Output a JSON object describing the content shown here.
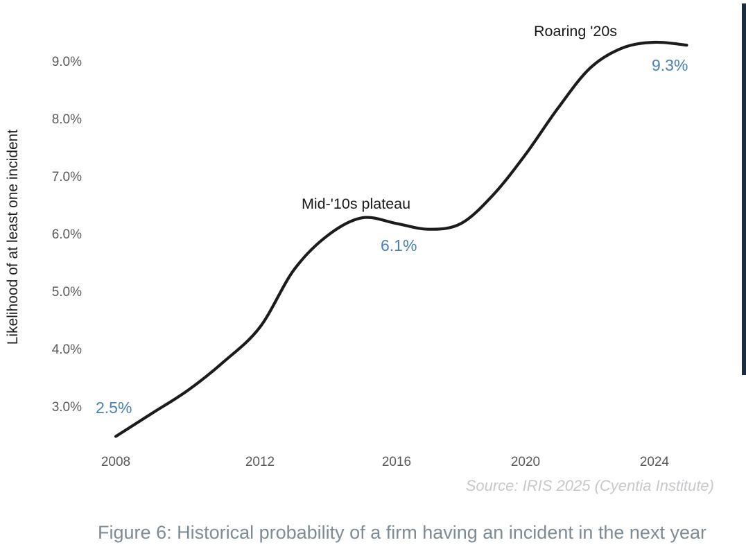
{
  "figure": {
    "caption": "Figure 6: Historical probability of a firm having an incident in the next year",
    "source": "Source: IRIS 2025 (Cyentia Institute)"
  },
  "axes": {
    "y_title": "Likelihood of at least one incident",
    "y_tick_labels": [
      "9.0%",
      "8.0%",
      "7.0%",
      "6.0%",
      "5.0%",
      "4.0%",
      "3.0%"
    ],
    "x_tick_labels": [
      "2008",
      "2012",
      "2016",
      "2020",
      "2024"
    ]
  },
  "annotations": {
    "plateau": "Mid-'10s plateau",
    "roaring": "Roaring '20s"
  },
  "value_labels": {
    "start": "2.5%",
    "plateau": "6.1%",
    "peak": "9.3%"
  },
  "colors": {
    "curve": "#1b1b1b",
    "value_label_blue": "#4a80b2",
    "tick_gray": "#58595b",
    "source_gray": "#c6c8cb",
    "caption_gray": "#7d8b95",
    "right_bar_navy": "#1a2c3e"
  },
  "chart_data": {
    "type": "line",
    "title": "",
    "xlabel": "",
    "ylabel": "Likelihood of at least one incident",
    "x": [
      2008,
      2009,
      2010,
      2011,
      2012,
      2013,
      2014,
      2015,
      2016,
      2017,
      2018,
      2019,
      2020,
      2021,
      2022,
      2023,
      2024,
      2025
    ],
    "values": [
      2.5,
      2.9,
      3.3,
      3.8,
      4.4,
      5.4,
      6.0,
      6.3,
      6.2,
      6.1,
      6.2,
      6.7,
      7.4,
      8.2,
      8.9,
      9.25,
      9.35,
      9.3
    ],
    "y_ticks": [
      3.0,
      4.0,
      5.0,
      6.0,
      7.0,
      8.0,
      9.0
    ],
    "x_ticks": [
      2008,
      2012,
      2016,
      2020,
      2024
    ],
    "ylim": [
      2.3,
      9.7
    ],
    "grid": false,
    "legend": "none",
    "annotated_points": [
      {
        "x": 2008,
        "value": 2.5,
        "label": "2.5%"
      },
      {
        "x": 2017,
        "value": 6.1,
        "label": "6.1%"
      },
      {
        "x": 2025,
        "value": 9.3,
        "label": "9.3%"
      }
    ]
  }
}
